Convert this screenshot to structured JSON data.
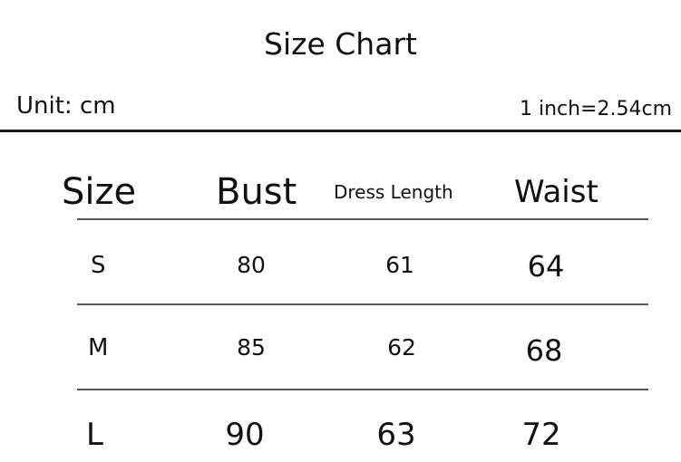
{
  "title": "Size Chart",
  "unit_label": "Unit: cm",
  "conversion_label": "1 inch=2.54cm",
  "table": {
    "headers": [
      "Size",
      "Bust",
      "Dress Length",
      "Waist"
    ],
    "rows": [
      [
        "S",
        "80",
        "61",
        "64"
      ],
      [
        "M",
        "85",
        "62",
        "68"
      ],
      [
        "L",
        "90",
        "63",
        "72"
      ]
    ]
  }
}
